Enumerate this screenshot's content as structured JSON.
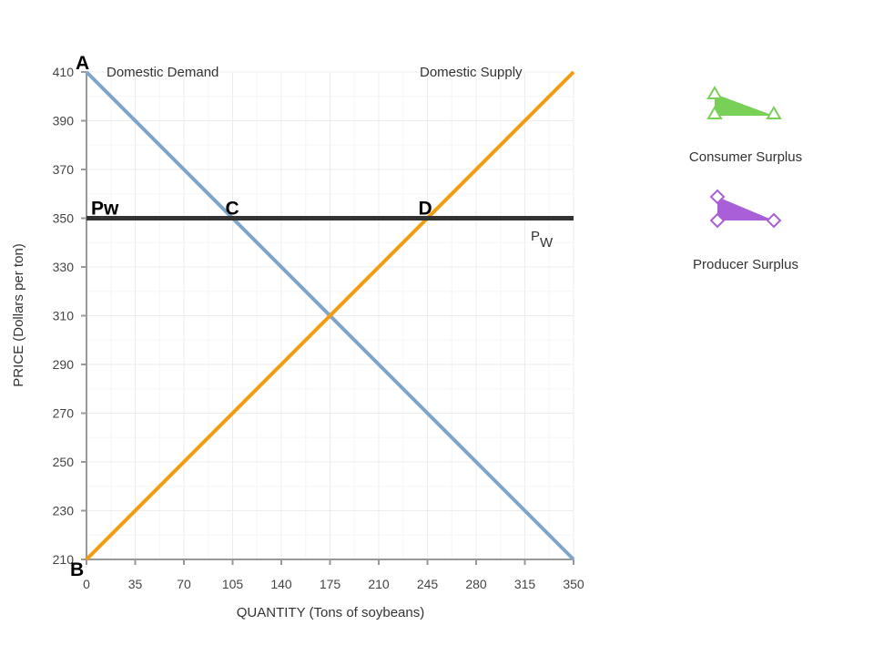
{
  "chart_data": {
    "type": "line",
    "xlabel": "QUANTITY (Tons of soybeans)",
    "ylabel": "PRICE (Dollars per ton)",
    "xlim": [
      0,
      350
    ],
    "ylim": [
      210,
      410
    ],
    "xticks": [
      0,
      35,
      70,
      105,
      140,
      175,
      210,
      245,
      280,
      315,
      350
    ],
    "yticks": [
      210,
      230,
      250,
      270,
      290,
      310,
      330,
      350,
      370,
      390,
      410
    ],
    "grid": true,
    "series": [
      {
        "name": "Domestic Demand",
        "color": "#7fa6c9",
        "points": [
          [
            0,
            410
          ],
          [
            350,
            210
          ]
        ]
      },
      {
        "name": "Domestic Supply",
        "color": "#f39c12",
        "points": [
          [
            0,
            210
          ],
          [
            350,
            410
          ]
        ]
      },
      {
        "name": "PW",
        "name_main": "P",
        "name_sub": "W",
        "color": "#333333",
        "points": [
          [
            0,
            350
          ],
          [
            350,
            350
          ]
        ]
      }
    ],
    "point_labels": [
      {
        "text": "A",
        "x": 0,
        "y": 410
      },
      {
        "text": "B",
        "x": 0,
        "y": 210
      },
      {
        "text": "C",
        "x": 105,
        "y": 350
      },
      {
        "text": "D",
        "x": 245,
        "y": 350
      },
      {
        "text": "Pw",
        "x": 0,
        "y": 350
      }
    ],
    "legend": [
      {
        "label": "Consumer Surplus",
        "color": "#78d056",
        "marker": "triangle"
      },
      {
        "label": "Producer Surplus",
        "color": "#a95fd8",
        "marker": "diamond"
      }
    ],
    "legend_position": "right"
  }
}
